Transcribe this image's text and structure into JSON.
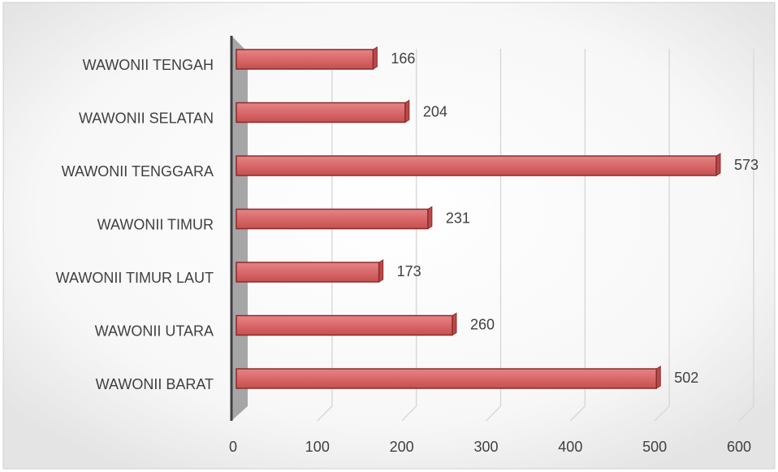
{
  "chart_data": {
    "type": "bar",
    "orientation": "horizontal",
    "categories": [
      "WAWONII TENGAH",
      "WAWONII SELATAN",
      "WAWONII TENGGARA",
      "WAWONII TIMUR",
      "WAWONII TIMUR LAUT",
      "WAWONII UTARA",
      "WAWONII BARAT"
    ],
    "values": [
      166,
      204,
      573,
      231,
      173,
      260,
      502
    ],
    "color": "#d9686a",
    "xlim": [
      0,
      600
    ],
    "xticks": [
      0,
      100,
      200,
      300,
      400,
      500,
      600
    ],
    "grid": true
  }
}
